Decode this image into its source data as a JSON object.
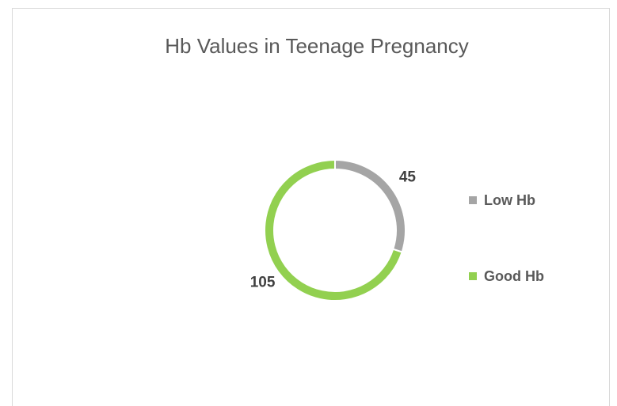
{
  "chart_data": {
    "type": "doughnut",
    "title": "Hb Values in Teenage Pregnancy",
    "categories": [
      "Low Hb",
      "Good Hb"
    ],
    "values": [
      45,
      105
    ],
    "colors": [
      "#a5a5a5",
      "#92d050"
    ],
    "legend": "right"
  }
}
